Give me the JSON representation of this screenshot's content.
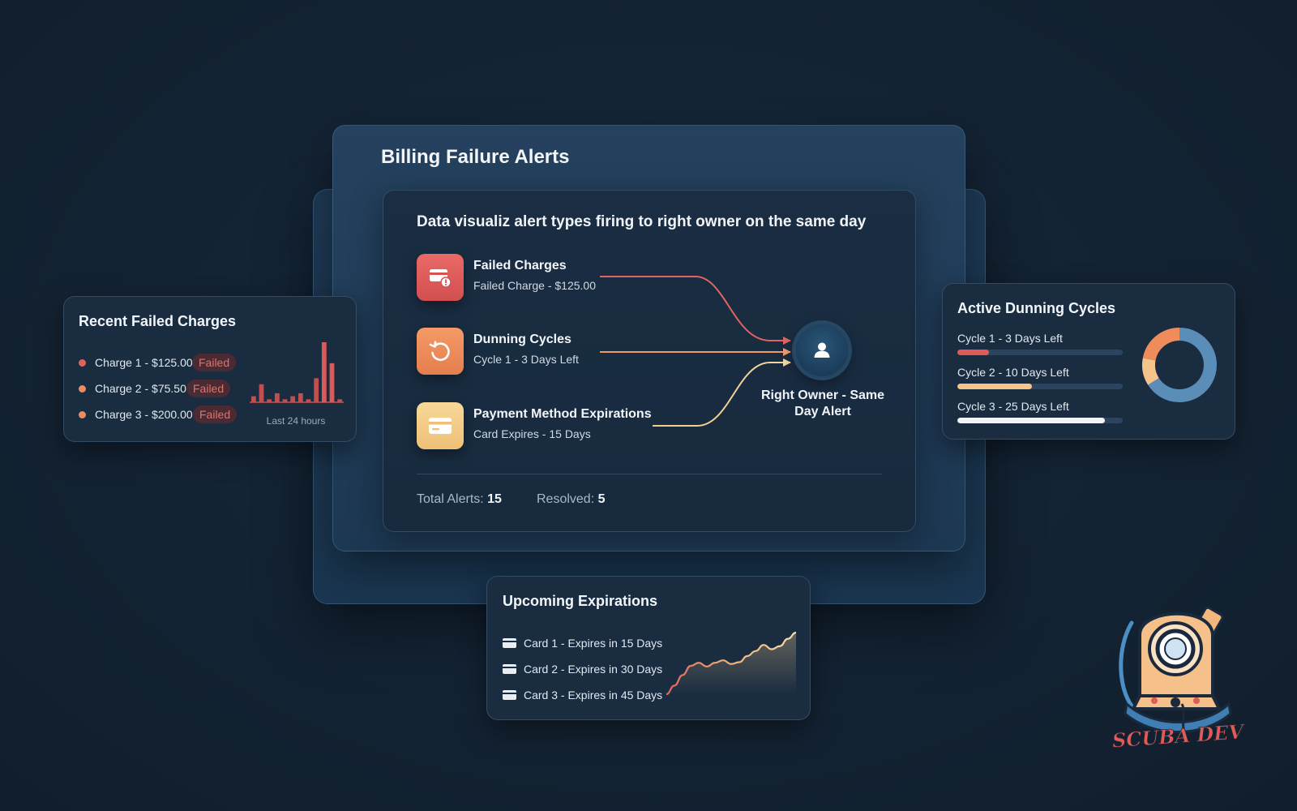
{
  "main": {
    "title": "Billing Failure Alerts",
    "subtitle": "Data visualiz alert types firing to right owner on the same day",
    "alerts": [
      {
        "title": "Failed Charges",
        "detail": "Failed Charge - $125.00",
        "icon": "failed-card-icon",
        "color": "#e05a58"
      },
      {
        "title": "Dunning Cycles",
        "detail": "Cycle 1 - 3 Days Left",
        "icon": "refresh-cycle-icon",
        "color": "#ef8c5c"
      },
      {
        "title": "Payment Method Expirations",
        "detail": "Card Expires - 15 Days",
        "icon": "credit-card-icon",
        "color": "#f4cc85"
      }
    ],
    "owner": {
      "label": "Right Owner - Same Day Alert",
      "icon": "user-icon"
    },
    "stats": {
      "total_label": "Total Alerts:",
      "total_value": "15",
      "resolved_label": "Resolved:",
      "resolved_value": "5"
    }
  },
  "recent_failed": {
    "title": "Recent Failed Charges",
    "items": [
      {
        "label": "Charge 1 - $125.00",
        "status": "Failed"
      },
      {
        "label": "Charge 2 - $75.50",
        "status": "Failed"
      },
      {
        "label": "Charge 3 - $200.00",
        "status": "Failed"
      }
    ],
    "chart_caption": "Last 24 hours",
    "bar_values": [
      2,
      6,
      1,
      3,
      1,
      2,
      3,
      1,
      8,
      20,
      13,
      1
    ]
  },
  "dunning": {
    "title": "Active Dunning Cycles",
    "cycles": [
      {
        "label": "Cycle 1 - 3 Days Left",
        "progress": 0.19,
        "color": "#e05a58"
      },
      {
        "label": "Cycle 2 - 10 Days Left",
        "progress": 0.45,
        "color": "#f4c48a"
      },
      {
        "label": "Cycle 3 - 25 Days Left",
        "progress": 0.89,
        "color": "#f2f4f6"
      }
    ],
    "donut_segments": [
      {
        "value": 0.66,
        "color": "#5b8db9"
      },
      {
        "value": 0.12,
        "color": "#f4c48a"
      },
      {
        "value": 0.22,
        "color": "#ef8c5c"
      }
    ]
  },
  "expirations": {
    "title": "Upcoming Expirations",
    "items": [
      {
        "label": "Card 1 - Expires in 15 Days"
      },
      {
        "label": "Card 2 - Expires in 30 Days"
      },
      {
        "label": "Card 3 - Expires in 45 Days"
      }
    ],
    "trend_values": [
      0,
      14,
      31,
      46,
      51,
      45,
      51,
      55,
      49,
      52,
      62,
      70,
      80,
      73,
      78,
      90,
      100
    ]
  },
  "logo": {
    "text": "SCUBA DEV"
  }
}
